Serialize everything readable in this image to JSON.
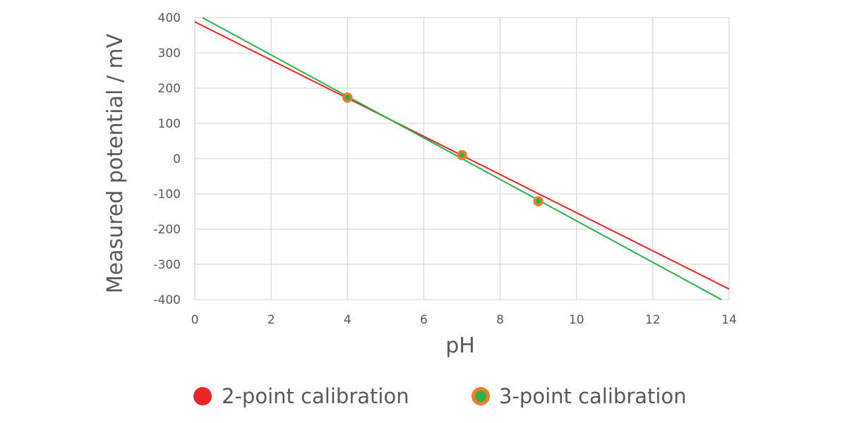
{
  "chart_data": {
    "type": "scatter",
    "xlabel": "pH",
    "ylabel": "Measured potential / mV",
    "xlim": [
      0,
      14
    ],
    "ylim": [
      -400,
      400
    ],
    "xticks": [
      0,
      2,
      4,
      6,
      8,
      10,
      12,
      14
    ],
    "yticks": [
      400,
      300,
      200,
      100,
      0,
      -100,
      -200,
      -300,
      -400
    ],
    "grid": true,
    "legend_position": "bottom",
    "series": [
      {
        "name": "2-point calibration",
        "kind": "line",
        "color": "#e8262a",
        "x": [
          0,
          14
        ],
        "y": [
          388,
          -370
        ]
      },
      {
        "name": "3-point calibration",
        "kind": "line",
        "color": "#2db24a",
        "marker_edge": "#f07e26",
        "x": [
          0.2,
          13.8
        ],
        "y": [
          400,
          -400
        ]
      }
    ],
    "points": {
      "x": [
        4,
        7,
        9
      ],
      "y": [
        173,
        10,
        -121
      ]
    }
  }
}
